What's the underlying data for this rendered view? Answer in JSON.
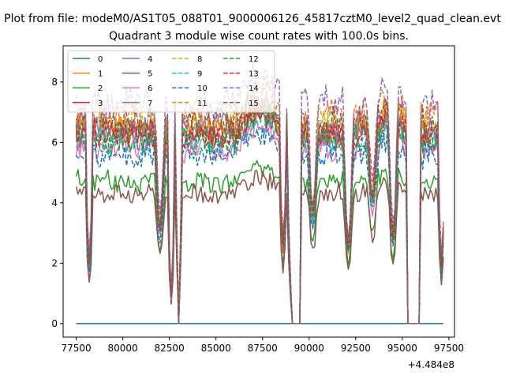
{
  "figure": {
    "suptitle": "Plot from file: modeM0/AS1T05_088T01_9000006126_45817cztM0_level2_quad_clean.evt",
    "offset_label": "+4.484e8"
  },
  "chart_data": {
    "type": "line",
    "title": "Quadrant 3 module wise count rates with 100.0s bins.",
    "xlabel": "",
    "ylabel": "",
    "xlim": [
      76800,
      97800
    ],
    "ylim": [
      -0.45,
      9.2
    ],
    "x_ticks": [
      77500,
      80000,
      82500,
      85000,
      87500,
      90000,
      92500,
      95000,
      97500
    ],
    "x_tick_labels": [
      "77500",
      "80000",
      "82500",
      "85000",
      "87500",
      "90000",
      "92500",
      "95000",
      "97500"
    ],
    "y_ticks": [
      0,
      2,
      4,
      6,
      8
    ],
    "y_tick_labels": [
      "0",
      "2",
      "4",
      "6",
      "8"
    ],
    "x_start": 77500,
    "x_end": 97200,
    "bin": 100,
    "grid": false,
    "legend_position": "top-left",
    "legend_columns": 4,
    "series": [
      {
        "name": "0",
        "color": "#1f77b4",
        "dash": "solid",
        "level": 0.0
      },
      {
        "name": "1",
        "color": "#ff7f0e",
        "dash": "solid",
        "level": 6.4
      },
      {
        "name": "2",
        "color": "#2ca02c",
        "dash": "solid",
        "level": 4.7
      },
      {
        "name": "3",
        "color": "#d62728",
        "dash": "solid",
        "level": 6.2
      },
      {
        "name": "4",
        "color": "#9467bd",
        "dash": "solid",
        "level": 6.5
      },
      {
        "name": "5",
        "color": "#8c564b",
        "dash": "solid",
        "level": 4.3
      },
      {
        "name": "6",
        "color": "#e377c2",
        "dash": "solid",
        "level": 5.8
      },
      {
        "name": "7",
        "color": "#7f7f7f",
        "dash": "solid",
        "level": 6.3
      },
      {
        "name": "8",
        "color": "#bcbd22",
        "dash": "dashed",
        "level": 6.6
      },
      {
        "name": "9",
        "color": "#17becf",
        "dash": "dashed",
        "level": 6.0
      },
      {
        "name": "10",
        "color": "#1f77b4",
        "dash": "dashed",
        "level": 5.6
      },
      {
        "name": "11",
        "color": "#ff7f0e",
        "dash": "dashed",
        "level": 6.9
      },
      {
        "name": "12",
        "color": "#2ca02c",
        "dash": "dashed",
        "level": 6.1
      },
      {
        "name": "13",
        "color": "#d62728",
        "dash": "dashed",
        "level": 6.3
      },
      {
        "name": "14",
        "color": "#9467bd",
        "dash": "dashed",
        "level": 7.3
      },
      {
        "name": "15",
        "color": "#8c564b",
        "dash": "dashed",
        "level": 6.7
      }
    ],
    "features": {
      "dips": [
        {
          "center": 78200,
          "depth": 0.7,
          "width": 200
        },
        {
          "center": 82000,
          "depth": 0.5,
          "width": 250
        },
        {
          "center": 82600,
          "depth": 0.85,
          "width": 200
        },
        {
          "center": 83000,
          "depth": 1.0,
          "width": 150
        },
        {
          "center": 88600,
          "depth": 0.6,
          "width": 200
        },
        {
          "center": 89100,
          "depth": 0.9,
          "width": 300
        },
        {
          "center": 90200,
          "depth": 0.45,
          "width": 250
        },
        {
          "center": 92100,
          "depth": 0.6,
          "width": 250
        },
        {
          "center": 93400,
          "depth": 0.35,
          "width": 250
        },
        {
          "center": 94500,
          "depth": 0.6,
          "width": 250
        },
        {
          "center": 95600,
          "depth": 1.0,
          "width": 400
        },
        {
          "center": 97100,
          "depth": 0.7,
          "width": 200
        }
      ],
      "zero_intervals": [
        [
          89100,
          89500
        ],
        [
          95300,
          95900
        ]
      ]
    }
  }
}
